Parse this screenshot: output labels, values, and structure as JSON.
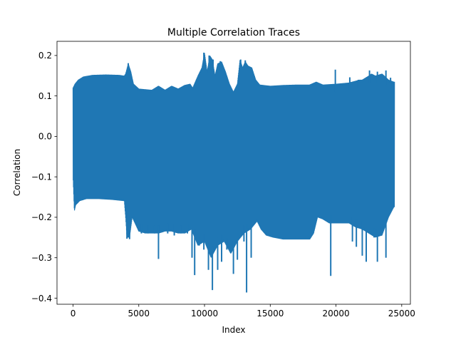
{
  "chart_data": {
    "type": "line",
    "title": "Multiple Correlation Traces",
    "xlabel": "Index",
    "ylabel": "Correlation",
    "xlim": [
      -1220,
      25660
    ],
    "ylim": [
      -0.415,
      0.235
    ],
    "xticks": [
      {
        "value": 0,
        "label": "0"
      },
      {
        "value": 5000,
        "label": "5000"
      },
      {
        "value": 10000,
        "label": "10000"
      },
      {
        "value": 15000,
        "label": "15000"
      },
      {
        "value": 20000,
        "label": "20000"
      },
      {
        "value": 25000,
        "label": "25000"
      }
    ],
    "yticks": [
      {
        "value": 0.2,
        "label": "0.2"
      },
      {
        "value": 0.1,
        "label": "0.1"
      },
      {
        "value": 0.0,
        "label": "0.0"
      },
      {
        "value": -0.1,
        "label": "−0.1"
      },
      {
        "value": -0.2,
        "label": "−0.2"
      },
      {
        "value": -0.3,
        "label": "−0.3"
      },
      {
        "value": -0.4,
        "label": "−0.4"
      }
    ],
    "grid": false,
    "legend": "none",
    "series": [
      {
        "color": "#1f77b4",
        "x_range": [
          0,
          24450
        ],
        "upper_envelope": [
          [
            0,
            0.12
          ],
          [
            150,
            0.13
          ],
          [
            400,
            0.14
          ],
          [
            800,
            0.148
          ],
          [
            1500,
            0.152
          ],
          [
            2500,
            0.153
          ],
          [
            3500,
            0.152
          ],
          [
            3900,
            0.15
          ],
          [
            4000,
            0.155
          ],
          [
            4200,
            0.18
          ],
          [
            4400,
            0.16
          ],
          [
            4600,
            0.13
          ],
          [
            5000,
            0.118
          ],
          [
            6000,
            0.115
          ],
          [
            6500,
            0.125
          ],
          [
            7000,
            0.115
          ],
          [
            7500,
            0.125
          ],
          [
            8000,
            0.118
          ],
          [
            8500,
            0.127
          ],
          [
            8900,
            0.13
          ],
          [
            9100,
            0.12
          ],
          [
            9500,
            0.15
          ],
          [
            9800,
            0.17
          ],
          [
            10000,
            0.207
          ],
          [
            10200,
            0.16
          ],
          [
            10400,
            0.2
          ],
          [
            10600,
            0.19
          ],
          [
            10800,
            0.15
          ],
          [
            11000,
            0.18
          ],
          [
            11300,
            0.185
          ],
          [
            11600,
            0.16
          ],
          [
            11900,
            0.13
          ],
          [
            12200,
            0.11
          ],
          [
            12500,
            0.13
          ],
          [
            12700,
            0.19
          ],
          [
            12900,
            0.17
          ],
          [
            13100,
            0.185
          ],
          [
            13300,
            0.175
          ],
          [
            13600,
            0.17
          ],
          [
            13900,
            0.14
          ],
          [
            14200,
            0.128
          ],
          [
            15000,
            0.125
          ],
          [
            16000,
            0.127
          ],
          [
            17000,
            0.128
          ],
          [
            18000,
            0.128
          ],
          [
            18500,
            0.135
          ],
          [
            19000,
            0.128
          ],
          [
            20000,
            0.13
          ],
          [
            21000,
            0.133
          ],
          [
            21800,
            0.14
          ],
          [
            22000,
            0.14
          ],
          [
            22500,
            0.15
          ],
          [
            22700,
            0.155
          ],
          [
            23000,
            0.15
          ],
          [
            23500,
            0.155
          ],
          [
            24000,
            0.14
          ],
          [
            24400,
            0.135
          ]
        ],
        "lower_envelope": [
          [
            0,
            -0.1
          ],
          [
            100,
            -0.185
          ],
          [
            200,
            -0.17
          ],
          [
            500,
            -0.16
          ],
          [
            1000,
            -0.155
          ],
          [
            2000,
            -0.155
          ],
          [
            3000,
            -0.157
          ],
          [
            3900,
            -0.16
          ],
          [
            4000,
            -0.2
          ],
          [
            4100,
            -0.25
          ],
          [
            4300,
            -0.25
          ],
          [
            4500,
            -0.2
          ],
          [
            5000,
            -0.235
          ],
          [
            5500,
            -0.24
          ],
          [
            6000,
            -0.24
          ],
          [
            6500,
            -0.24
          ],
          [
            7000,
            -0.235
          ],
          [
            7500,
            -0.235
          ],
          [
            8000,
            -0.24
          ],
          [
            8500,
            -0.24
          ],
          [
            9000,
            -0.23
          ],
          [
            9500,
            -0.27
          ],
          [
            10000,
            -0.26
          ],
          [
            10500,
            -0.3
          ],
          [
            11000,
            -0.27
          ],
          [
            11500,
            -0.26
          ],
          [
            12000,
            -0.29
          ],
          [
            12500,
            -0.26
          ],
          [
            13000,
            -0.24
          ],
          [
            13500,
            -0.23
          ],
          [
            14000,
            -0.21
          ],
          [
            14300,
            -0.23
          ],
          [
            14700,
            -0.245
          ],
          [
            15200,
            -0.25
          ],
          [
            16000,
            -0.255
          ],
          [
            17000,
            -0.255
          ],
          [
            18000,
            -0.255
          ],
          [
            18300,
            -0.24
          ],
          [
            18600,
            -0.2
          ],
          [
            19000,
            -0.205
          ],
          [
            19500,
            -0.215
          ],
          [
            20000,
            -0.215
          ],
          [
            20500,
            -0.215
          ],
          [
            21000,
            -0.215
          ],
          [
            21500,
            -0.225
          ],
          [
            22000,
            -0.23
          ],
          [
            22500,
            -0.24
          ],
          [
            23000,
            -0.25
          ],
          [
            23500,
            -0.245
          ],
          [
            24000,
            -0.2
          ],
          [
            24400,
            -0.175
          ]
        ],
        "spikes_low": [
          [
            4100,
            -0.253
          ],
          [
            4300,
            -0.254
          ],
          [
            5200,
            -0.24
          ],
          [
            5700,
            -0.24
          ],
          [
            6200,
            -0.24
          ],
          [
            6500,
            -0.303
          ],
          [
            7200,
            -0.24
          ],
          [
            7700,
            -0.245
          ],
          [
            8200,
            -0.24
          ],
          [
            8700,
            -0.24
          ],
          [
            9050,
            -0.3
          ],
          [
            9250,
            -0.343
          ],
          [
            9600,
            -0.27
          ],
          [
            9950,
            -0.28
          ],
          [
            10300,
            -0.33
          ],
          [
            10600,
            -0.38
          ],
          [
            11000,
            -0.33
          ],
          [
            11300,
            -0.31
          ],
          [
            11700,
            -0.28
          ],
          [
            12200,
            -0.34
          ],
          [
            12500,
            -0.305
          ],
          [
            13000,
            -0.26
          ],
          [
            13200,
            -0.386
          ],
          [
            13550,
            -0.3
          ],
          [
            19600,
            -0.345
          ],
          [
            21250,
            -0.26
          ],
          [
            21550,
            -0.273
          ],
          [
            22000,
            -0.295
          ],
          [
            22300,
            -0.31
          ],
          [
            22900,
            -0.25
          ],
          [
            23150,
            -0.31
          ],
          [
            23450,
            -0.23
          ],
          [
            23800,
            -0.3
          ]
        ],
        "spikes_high": [
          [
            4200,
            0.181
          ],
          [
            9950,
            0.207
          ],
          [
            10350,
            0.2
          ],
          [
            10650,
            0.19
          ],
          [
            11200,
            0.186
          ],
          [
            12750,
            0.19
          ],
          [
            13100,
            0.188
          ],
          [
            19950,
            0.165
          ],
          [
            21050,
            0.146
          ],
          [
            21700,
            0.14
          ],
          [
            22550,
            0.163
          ],
          [
            23150,
            0.16
          ],
          [
            23800,
            0.163
          ],
          [
            24150,
            0.145
          ]
        ]
      }
    ]
  }
}
